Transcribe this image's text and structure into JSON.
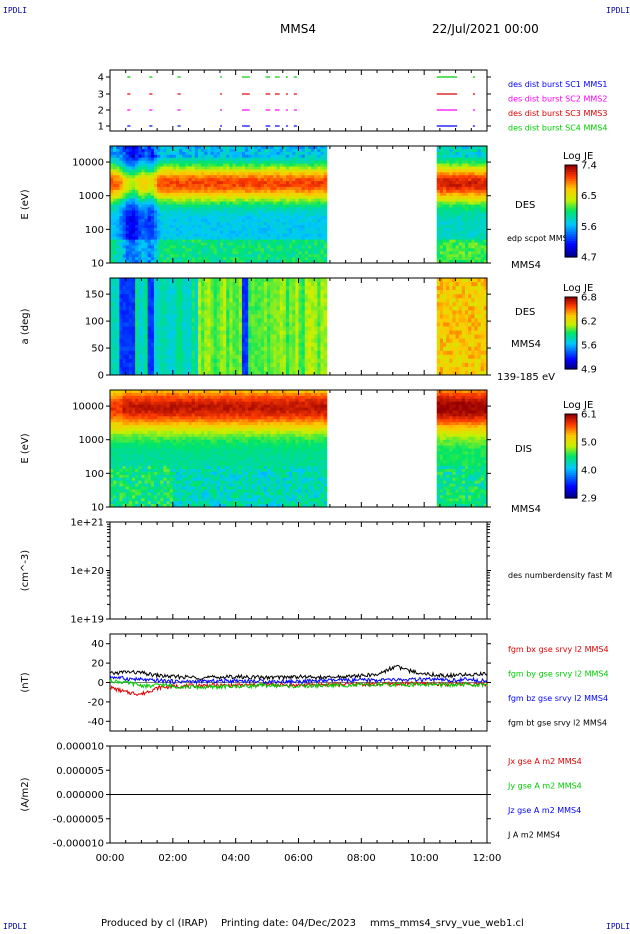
{
  "header": {
    "corner_label": "IPDLI",
    "spacecraft": "MMS4",
    "date": "22/Jul/2021 00:00"
  },
  "footer": {
    "produced_by": "Produced by cl (IRAP)",
    "printing_date": "Printing date: 04/Dec/2023",
    "filename": "mms_mms4_srvy_vue_web1.cl"
  },
  "time_axis": {
    "ticks": [
      "00:00",
      "02:00",
      "04:00",
      "06:00",
      "08:00",
      "10:00",
      "12:00"
    ],
    "range_hours": [
      0,
      12
    ],
    "data_gap_hours": [
      6.9,
      10.3
    ]
  },
  "chart_data": [
    {
      "type": "scatter",
      "panel": "burst-availability",
      "y_ticks": [
        "4",
        "3",
        "2",
        "1"
      ],
      "legend": [
        {
          "name": "des dist burst SC1 MMS1",
          "color": "#0000ff"
        },
        {
          "name": "des dist burst SC2 MMS2",
          "color": "#ff00ff"
        },
        {
          "name": "des dist burst SC3 MMS3",
          "color": "#dd0000"
        },
        {
          "name": "des dist burst SC4 MMS4",
          "color": "#00cc00"
        }
      ],
      "burst_intervals_hours": [
        [
          0.55,
          0.65
        ],
        [
          1.25,
          1.35
        ],
        [
          2.15,
          2.25
        ],
        [
          3.5,
          3.55
        ],
        [
          4.2,
          4.45
        ],
        [
          4.95,
          5.1
        ],
        [
          5.25,
          5.4
        ],
        [
          5.6,
          5.65
        ],
        [
          5.85,
          5.95
        ],
        [
          10.4,
          11.05
        ],
        [
          11.55,
          11.62
        ]
      ]
    },
    {
      "type": "heatmap",
      "panel": "des-energy-spectrogram",
      "ylabel": "E (eV)",
      "y_ticks": [
        "10000",
        "1000",
        "100",
        "10"
      ],
      "ylim": [
        10,
        30000
      ],
      "y_log": true,
      "right_labels": [
        "DES",
        "edp scpot MMS4",
        "MMS4"
      ],
      "colorbar": {
        "title": "Log JE",
        "ticks": [
          "7.4",
          "6.5",
          "5.6",
          "4.7"
        ],
        "range": [
          4.7,
          7.4
        ]
      }
    },
    {
      "type": "heatmap",
      "panel": "des-pitch-angle",
      "ylabel": "a (deg)",
      "y_ticks": [
        "150",
        "100",
        "50",
        "0"
      ],
      "ylim": [
        0,
        180
      ],
      "right_labels": [
        "DES",
        "MMS4",
        "139-185 eV"
      ],
      "colorbar": {
        "title": "Log JE",
        "ticks": [
          "6.8",
          "6.2",
          "5.6",
          "4.9"
        ],
        "range": [
          4.9,
          6.8
        ]
      }
    },
    {
      "type": "heatmap",
      "panel": "dis-energy-spectrogram",
      "ylabel": "E (eV)",
      "y_ticks": [
        "10000",
        "1000",
        "100",
        "10"
      ],
      "ylim": [
        10,
        30000
      ],
      "y_log": true,
      "right_labels": [
        "DIS",
        "MMS4"
      ],
      "colorbar": {
        "title": "Log JE",
        "ticks": [
          "6.1",
          "5.0",
          "4.0",
          "2.9"
        ],
        "range": [
          2.9,
          6.1
        ]
      }
    },
    {
      "type": "line",
      "panel": "density",
      "ylabel": "(cm^-3)",
      "y_ticks": [
        "1e+21",
        "1e+20",
        "1e+19"
      ],
      "ylim": [
        1e+19,
        1e+21
      ],
      "y_log": true,
      "series": [
        {
          "name": "des numberdensity fast M",
          "color": "#000000",
          "values": []
        }
      ]
    },
    {
      "type": "line",
      "panel": "magnetic-field",
      "ylabel": "(nT)",
      "y_ticks": [
        "40",
        "20",
        "0",
        "-20",
        "-40"
      ],
      "ylim": [
        -50,
        50
      ],
      "series": [
        {
          "name": "fgm bx gse srvy l2 MMS4",
          "color": "#dd0000",
          "t": [
            0,
            0.5,
            1,
            1.3,
            1.6,
            2,
            3,
            4,
            5,
            6,
            6.9,
            10.3,
            10.8,
            11.3,
            12
          ],
          "values": [
            -5,
            -10,
            -12,
            -8,
            -5,
            -4,
            -3,
            -3,
            -2,
            -3,
            -2,
            -1,
            -2,
            -1,
            -2
          ]
        },
        {
          "name": "fgm by gse srvy l2 MMS4",
          "color": "#00cc00",
          "t": [
            0,
            0.5,
            1,
            1.3,
            1.6,
            2,
            3,
            4,
            5,
            6,
            6.9,
            10.3,
            10.8,
            11.3,
            12
          ],
          "values": [
            2,
            0,
            -3,
            -4,
            -2,
            -4,
            -5,
            -4,
            -3,
            -4,
            -3,
            -2,
            -3,
            -2,
            -3
          ]
        },
        {
          "name": "fgm bz gse srvy l2 MMS4",
          "color": "#0000ff",
          "t": [
            0,
            0.5,
            1,
            1.3,
            1.6,
            2,
            3,
            4,
            5,
            6,
            6.9,
            10.3,
            10.8,
            11.3,
            12
          ],
          "values": [
            6,
            4,
            3,
            2,
            2,
            1,
            1,
            2,
            1,
            1,
            2,
            3,
            2,
            3,
            2
          ]
        },
        {
          "name": "fgm bt gse srvy l2 MMS4",
          "color": "#000000",
          "t": [
            0,
            0.5,
            1,
            1.3,
            1.6,
            2,
            3,
            4,
            5,
            6,
            6.9,
            8.5,
            9.1,
            9.5,
            10.3,
            10.8,
            11.3,
            12
          ],
          "values": [
            9,
            11,
            10,
            8,
            7,
            6,
            5,
            6,
            5,
            6,
            5,
            8,
            17,
            12,
            8,
            7,
            8,
            9
          ]
        }
      ]
    },
    {
      "type": "line",
      "panel": "current-density",
      "ylabel": "(A/m2)",
      "y_ticks": [
        "0.000010",
        "0.000005",
        "0.000000",
        "-0.000005",
        "-0.000010"
      ],
      "ylim": [
        -1e-05,
        1e-05
      ],
      "series": [
        {
          "name": "Jx gse A m2 MMS4",
          "color": "#dd0000",
          "values": []
        },
        {
          "name": "Jy gse A m2 MMS4",
          "color": "#00cc00",
          "values": []
        },
        {
          "name": "Jz gse A m2 MMS4",
          "color": "#0000ff",
          "values": []
        },
        {
          "name": "J A m2 MMS4",
          "color": "#000000",
          "values": []
        }
      ]
    }
  ]
}
